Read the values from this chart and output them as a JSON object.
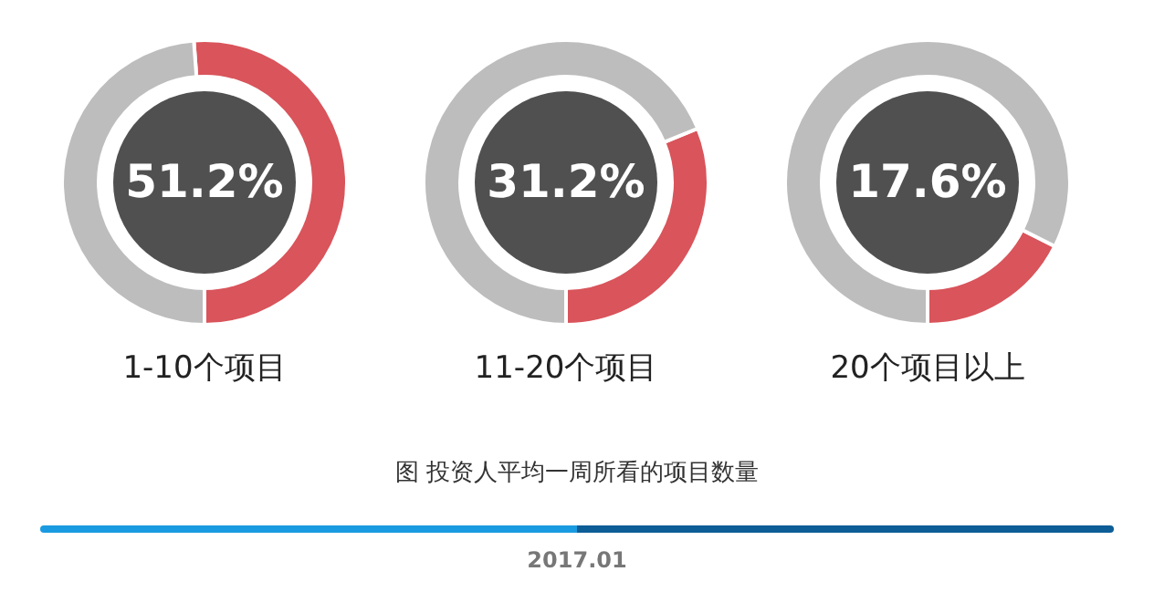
{
  "chart_data": [
    {
      "type": "donut",
      "title": "1-10个项目",
      "categories": [
        null,
        null
      ],
      "values": [
        51.2,
        48.8
      ],
      "colors": [
        "#d9545b",
        "#bdbdbd"
      ],
      "annotations": [
        "51.2%",
        "图 投资人平均一周所看的项目数量",
        "2017.01"
      ]
    },
    {
      "type": "donut",
      "title": "11-20个项目",
      "categories": [
        null,
        null
      ],
      "values": [
        31.2,
        68.8
      ],
      "colors": [
        "#d9545b",
        "#bdbdbd"
      ],
      "annotations": [
        "31.2%"
      ]
    },
    {
      "type": "donut",
      "title": "20个项目以上",
      "categories": [
        null,
        null
      ],
      "values": [
        17.6,
        82.4
      ],
      "colors": [
        "#d9545b",
        "#bdbdbd"
      ],
      "annotations": [
        "17.6%"
      ]
    }
  ]
}
